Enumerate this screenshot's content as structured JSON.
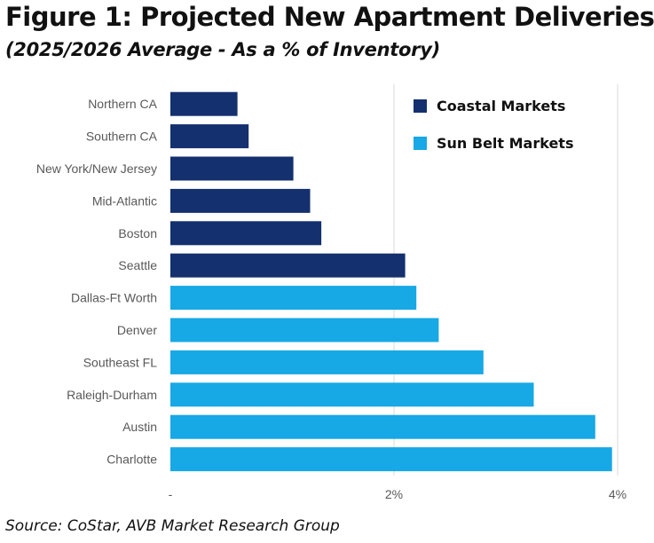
{
  "header": {
    "title": "Figure 1: Projected New Apartment Deliveries",
    "subtitle": "(2025/2026 Average - As a % of Inventory)"
  },
  "footer": {
    "source": "Source: CoStar, AVB Market Research Group"
  },
  "colors": {
    "coastal": "#14306e",
    "sunbelt": "#17a8e6",
    "gridline": "#d9d9d9"
  },
  "chart_data": {
    "type": "bar",
    "orientation": "horizontal",
    "categories": [
      "Northern CA",
      "Southern CA",
      "New York/New Jersey",
      "Mid-Atlantic",
      "Boston",
      "Seattle",
      "Dallas-Ft Worth",
      "Denver",
      "Southeast FL",
      "Raleigh-Durham",
      "Austin",
      "Charlotte"
    ],
    "values": [
      0.6,
      0.7,
      1.1,
      1.25,
      1.35,
      2.1,
      2.2,
      2.4,
      2.8,
      3.25,
      3.8,
      3.95
    ],
    "groups": [
      "Coastal Markets",
      "Coastal Markets",
      "Coastal Markets",
      "Coastal Markets",
      "Coastal Markets",
      "Coastal Markets",
      "Sun Belt Markets",
      "Sun Belt Markets",
      "Sun Belt Markets",
      "Sun Belt Markets",
      "Sun Belt Markets",
      "Sun Belt Markets"
    ],
    "legend": [
      "Coastal Markets",
      "Sun Belt Markets"
    ],
    "legend_position": "top-right",
    "xlim": [
      0,
      4
    ],
    "xticks": [
      0,
      2,
      4
    ],
    "xtick_labels": [
      "-",
      "2%",
      "4%"
    ],
    "grid": "vertical at 2%",
    "xlabel": "",
    "ylabel": ""
  }
}
